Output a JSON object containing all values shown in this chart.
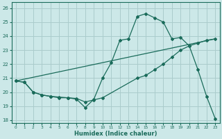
{
  "xlabel": "Humidex (Indice chaleur)",
  "bg_color": "#cce8e8",
  "grid_color": "#aacccc",
  "line_color": "#1a6b5a",
  "xlim": [
    -0.5,
    23.5
  ],
  "ylim": [
    17.8,
    26.4
  ],
  "yticks": [
    18,
    19,
    20,
    21,
    22,
    23,
    24,
    25,
    26
  ],
  "xticks": [
    0,
    1,
    2,
    3,
    4,
    5,
    6,
    7,
    8,
    9,
    10,
    11,
    12,
    13,
    14,
    15,
    16,
    17,
    18,
    19,
    20,
    21,
    22,
    23
  ],
  "line1_x": [
    0,
    1,
    2,
    3,
    4,
    5,
    6,
    7,
    8,
    9,
    10,
    11,
    12,
    13,
    14,
    15,
    16,
    17,
    18,
    19,
    20,
    21,
    22,
    23
  ],
  "line1_y": [
    20.8,
    20.7,
    20.0,
    19.8,
    19.7,
    19.6,
    19.6,
    19.5,
    18.9,
    19.5,
    21.0,
    22.1,
    23.7,
    23.8,
    25.4,
    25.6,
    25.3,
    25.0,
    23.8,
    23.9,
    23.3,
    21.6,
    19.7,
    18.1
  ],
  "line2_x": [
    0,
    23
  ],
  "line2_y": [
    20.8,
    23.8
  ],
  "line3_x": [
    0,
    1,
    2,
    3,
    4,
    5,
    6,
    7,
    8,
    9,
    10,
    14,
    15,
    16,
    17,
    18,
    19,
    20,
    21,
    22,
    23
  ],
  "line3_y": [
    20.8,
    20.7,
    20.0,
    19.8,
    19.7,
    19.65,
    19.6,
    19.55,
    19.3,
    19.45,
    19.6,
    21.0,
    21.2,
    21.6,
    22.0,
    22.5,
    23.0,
    23.3,
    23.5,
    23.7,
    23.8
  ]
}
